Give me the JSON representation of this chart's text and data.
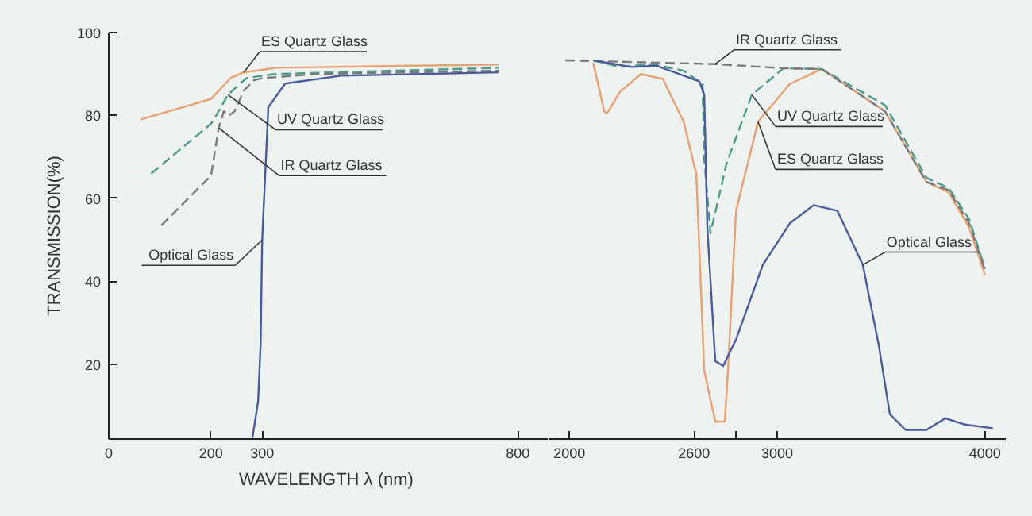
{
  "chart_data": [
    {
      "type": "line",
      "ylabel": "TRANSMISSION(%)",
      "xlabel": "WAVELENGTH  λ (nm)",
      "xlim": [
        0,
        860
      ],
      "ylim": [
        2,
        100
      ],
      "xticks": [
        0,
        200,
        300,
        800
      ],
      "yticks": [
        20,
        40,
        60,
        80,
        100
      ],
      "series": [
        {
          "color": "#e8a070",
          "line_style": "solid",
          "x": [
            62,
            200,
            238,
            264,
            300,
            326,
            762
          ],
          "values": [
            79,
            84,
            89,
            90.4,
            91,
            91.5,
            92.3
          ]
        },
        {
          "color": "#4a9a8a",
          "line_style": "dashed",
          "x": [
            83,
            200,
            210,
            233,
            269,
            300,
            326,
            762
          ],
          "values": [
            66,
            78,
            80,
            85,
            89,
            89.6,
            90,
            91.5
          ]
        },
        {
          "color": "#7a7a7a",
          "line_style": "dashed",
          "x": [
            103,
            200,
            215,
            225,
            235,
            246,
            264,
            284,
            300,
            407,
            762
          ],
          "values": [
            53.5,
            65.5,
            77,
            81,
            80,
            81,
            86,
            88.5,
            89,
            90,
            90.8
          ]
        },
        {
          "color": "#4a5a9a",
          "line_style": "solid",
          "x": [
            281,
            292,
            297,
            300,
            312,
            345,
            454,
            762
          ],
          "values": [
            2.3,
            11,
            25,
            50,
            82,
            87.7,
            89.6,
            90.4
          ]
        }
      ],
      "annotations": [
        {
          "text": "ES Quartz Glass",
          "x": 264,
          "y": 90.4
        },
        {
          "text": "UV Quartz Glass",
          "x": 233,
          "y": 85
        },
        {
          "text": "IR Quartz Glass",
          "x": 215,
          "y": 77
        },
        {
          "text": "Optical Glass",
          "x": 300,
          "y": 50
        }
      ]
    },
    {
      "type": "line",
      "xlim": [
        1900,
        4100
      ],
      "ylim": [
        2,
        100
      ],
      "xticks": [
        2000,
        2600,
        {
          "value": 2800,
          "label": null
        },
        3000,
        4000
      ],
      "yticks": [
        20,
        40,
        60,
        80,
        100
      ],
      "tick_labels": "x",
      "series": [
        {
          "color": "#e8a070",
          "line_style": "solid",
          "x": [
            2115,
            2168,
            2181,
            2244,
            2344,
            2450,
            2550,
            2611,
            2649,
            2702,
            2748,
            2763,
            2802,
            2908,
            3061,
            3214,
            3519,
            3718,
            3825,
            3924,
            4000
          ],
          "values": [
            92.7,
            81,
            80.5,
            85.7,
            90,
            88.8,
            78.5,
            65.8,
            18.5,
            6.2,
            6.2,
            18.5,
            57,
            78.5,
            87.6,
            91.2,
            81,
            64,
            61.5,
            53,
            41.5
          ]
        },
        {
          "color": "#4a9a8a",
          "line_style": "dashed",
          "x": [
            2115,
            2244,
            2397,
            2550,
            2641,
            2649,
            2679,
            2756,
            2878,
            3031,
            3214,
            3519,
            3718,
            3825,
            3924,
            4000
          ],
          "values": [
            93.3,
            91.7,
            92.4,
            90.8,
            87.6,
            69.6,
            51.6,
            68.4,
            85,
            91.4,
            91.2,
            82.5,
            65,
            62.5,
            55,
            43
          ]
        },
        {
          "color": "#7a7a7a",
          "line_style": "dashed",
          "x": [
            1980,
            2702,
            3031,
            3214,
            3519,
            3718,
            3825,
            3924,
            4000
          ],
          "values": [
            93.3,
            92.4,
            91.4,
            91.2,
            81,
            64,
            62,
            54,
            42.7
          ]
        },
        {
          "color": "#4a5a9a",
          "line_style": "solid",
          "x": [
            2115,
            2298,
            2420,
            2626,
            2649,
            2664,
            2702,
            2740,
            2802,
            2931,
            3061,
            3176,
            3290,
            3412,
            3489,
            3542,
            3618,
            3718,
            3809,
            3901,
            4038
          ],
          "values": [
            93.3,
            91.7,
            92,
            88.2,
            85,
            53,
            20.8,
            19.6,
            26,
            44,
            54,
            58.4,
            57,
            44,
            24.6,
            8,
            4.2,
            4.2,
            7,
            5.5,
            4.6
          ]
        }
      ],
      "annotations": [
        {
          "text": "IR Quartz Glass",
          "x": 2702,
          "y": 92.4
        },
        {
          "text": "UV Quartz Glass",
          "x": 2878,
          "y": 85
        },
        {
          "text": "ES Quartz Glass",
          "x": 2908,
          "y": 78.5
        },
        {
          "text": "Optical Glass",
          "x": 3412,
          "y": 44
        }
      ]
    }
  ]
}
